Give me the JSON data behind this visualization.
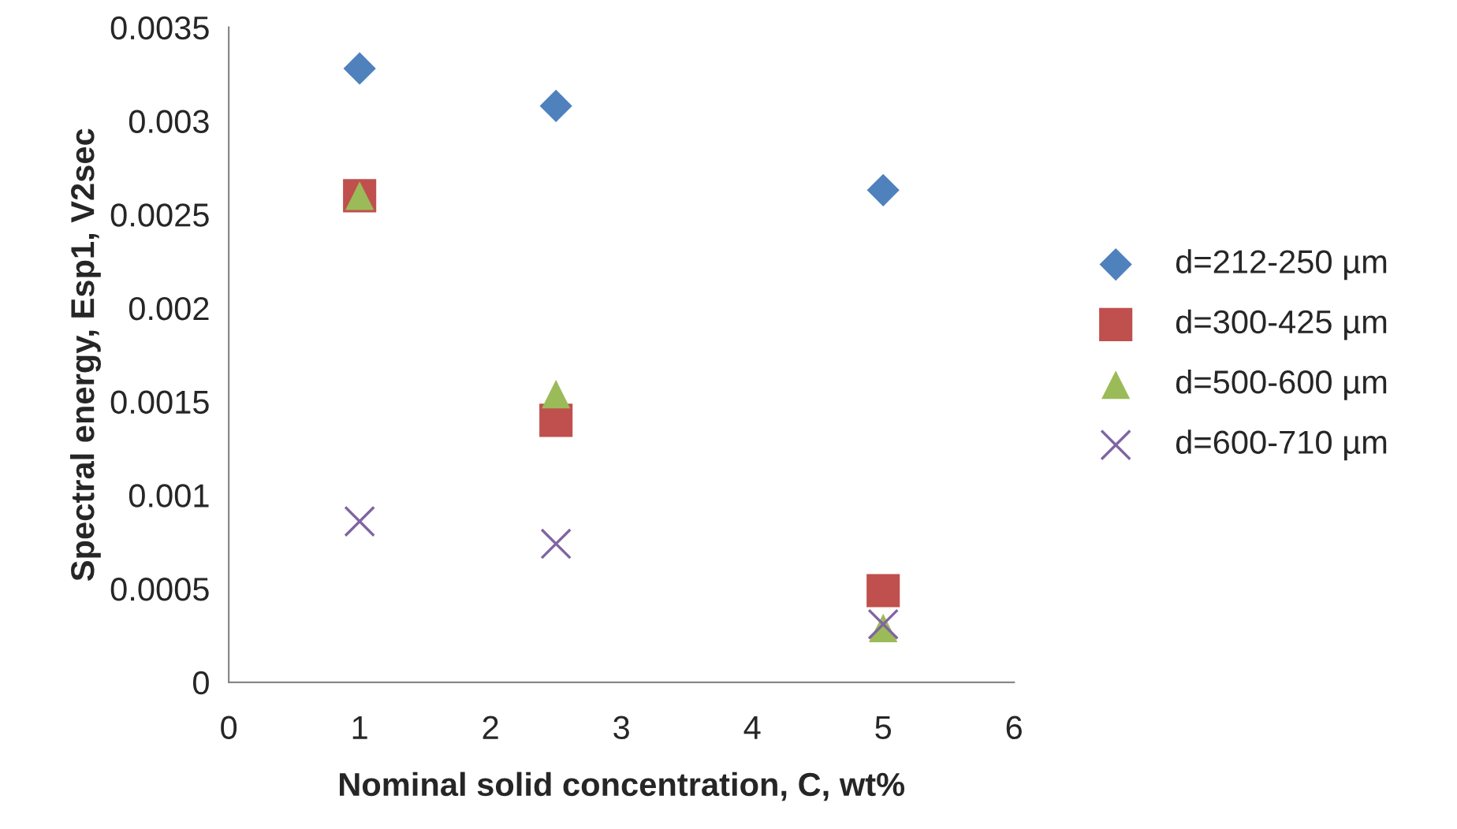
{
  "chart_data": {
    "type": "scatter",
    "xlabel": "Nominal solid concentration, C, wt%",
    "ylabel": "Spectral energy, Esp1, V2sec",
    "xlim": [
      0,
      6
    ],
    "xticks": [
      0,
      1,
      2,
      3,
      4,
      5,
      6
    ],
    "ylim": [
      0,
      0.0035
    ],
    "yticks": [
      0,
      0.0005,
      0.001,
      0.0015,
      0.002,
      0.0025,
      0.003,
      0.0035
    ],
    "grid": false,
    "legend": "right",
    "series": [
      {
        "name": "d=212-250 µm",
        "color": "#4f81bd",
        "marker": "diamond",
        "x": [
          1,
          2.5,
          5
        ],
        "values": [
          0.00328,
          0.00308,
          0.00263
        ]
      },
      {
        "name": "d=300-425 µm",
        "color": "#c0504d",
        "marker": "square",
        "x": [
          1,
          2.5,
          5
        ],
        "values": [
          0.0026,
          0.0014,
          0.00049
        ]
      },
      {
        "name": "d=500-600 µm",
        "color": "#9bbb59",
        "marker": "triangle",
        "x": [
          1,
          2.5,
          5
        ],
        "values": [
          0.0026,
          0.00154,
          0.00029
        ]
      },
      {
        "name": "d=600-710 µm",
        "color": "#8064a2",
        "marker": "cross",
        "x": [
          1,
          2.5,
          5
        ],
        "values": [
          0.00086,
          0.00074,
          0.00031
        ]
      }
    ]
  }
}
